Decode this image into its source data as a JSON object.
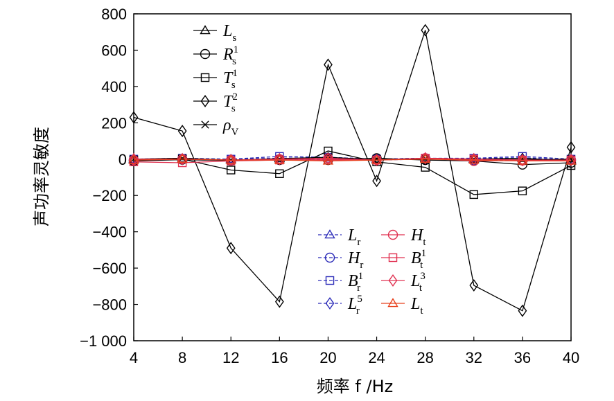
{
  "chart_data": {
    "type": "line",
    "xlabel": "频率 f /Hz",
    "ylabel": "声功率灵敏度",
    "x": [
      4,
      8,
      12,
      16,
      20,
      24,
      28,
      32,
      36,
      40
    ],
    "xlim": [
      4,
      40
    ],
    "ylim": [
      -1000,
      800
    ],
    "x_ticks": [
      "4",
      "8",
      "12",
      "16",
      "20",
      "24",
      "28",
      "32",
      "36",
      "40"
    ],
    "y_ticks": [
      "−1 000",
      "−800",
      "−600",
      "−400",
      "−200",
      "0",
      "200",
      "400",
      "600",
      "800"
    ],
    "y_tick_values": [
      -1000,
      -800,
      -600,
      -400,
      -200,
      0,
      200,
      400,
      600,
      800
    ],
    "grid": false,
    "legend_groups": [
      {
        "placement": "top-left",
        "items": [
          0,
          1,
          2,
          3,
          4
        ]
      },
      {
        "placement": "bottom-center",
        "columns": 2,
        "items": [
          5,
          6,
          7,
          8,
          9,
          10,
          11,
          12
        ]
      }
    ],
    "series": [
      {
        "name": "Ls",
        "base": "L",
        "sub": "s",
        "sup": "",
        "color": "#000000",
        "marker": "triangle",
        "dash": false,
        "values": [
          -5,
          2,
          -5,
          3,
          10,
          -3,
          5,
          0,
          5,
          -10
        ]
      },
      {
        "name": "Rs1",
        "base": "R",
        "sub": "s",
        "sup": "1",
        "color": "#000000",
        "marker": "circle",
        "dash": false,
        "values": [
          -10,
          -3,
          -8,
          -5,
          -5,
          5,
          -5,
          -10,
          -30,
          -20
        ]
      },
      {
        "name": "Ts1",
        "base": "T",
        "sub": "s",
        "sup": "1",
        "color": "#000000",
        "marker": "square",
        "dash": false,
        "values": [
          -5,
          0,
          -60,
          -80,
          45,
          -15,
          -45,
          -195,
          -175,
          -35
        ]
      },
      {
        "name": "Ts2",
        "base": "T",
        "sub": "s",
        "sup": "2",
        "color": "#000000",
        "marker": "diamond",
        "dash": false,
        "values": [
          230,
          155,
          -490,
          -785,
          520,
          -120,
          710,
          -695,
          -835,
          65
        ]
      },
      {
        "name": "ρV",
        "base": "ρ",
        "sub": "V",
        "sup": "",
        "color": "#000000",
        "marker": "x",
        "dash": false,
        "values": [
          0,
          5,
          -5,
          0,
          2,
          -2,
          3,
          0,
          -3,
          0
        ]
      },
      {
        "name": "Lr",
        "base": "L",
        "sub": "r",
        "sup": "",
        "color": "#2b2bb8",
        "marker": "triangle",
        "dash": true,
        "values": [
          0,
          2,
          0,
          5,
          10,
          0,
          5,
          2,
          8,
          -5
        ]
      },
      {
        "name": "Ht",
        "base": "H",
        "sub": "t",
        "sup": "",
        "color": "#e03050",
        "marker": "circle",
        "dash": false,
        "values": [
          -5,
          0,
          -5,
          0,
          5,
          -5,
          5,
          -10,
          -8,
          -5
        ]
      },
      {
        "name": "Hr",
        "base": "H",
        "sub": "r",
        "sup": "",
        "color": "#2b2bb8",
        "marker": "circle",
        "dash": true,
        "values": [
          -5,
          0,
          -5,
          0,
          5,
          0,
          5,
          -5,
          -5,
          -5
        ]
      },
      {
        "name": "Bt1",
        "base": "B",
        "sub": "t",
        "sup": "1",
        "color": "#e03050",
        "marker": "square",
        "dash": false,
        "values": [
          -15,
          -20,
          -10,
          -5,
          -5,
          -5,
          5,
          0,
          -5,
          -5
        ]
      },
      {
        "name": "Br1",
        "base": "B",
        "sub": "r",
        "sup": "1",
        "color": "#2b2bb8",
        "marker": "square",
        "dash": true,
        "values": [
          0,
          5,
          0,
          15,
          10,
          0,
          5,
          5,
          15,
          0
        ]
      },
      {
        "name": "Lt3",
        "base": "L",
        "sub": "t",
        "sup": "3",
        "color": "#e03050",
        "marker": "diamond",
        "dash": false,
        "values": [
          0,
          0,
          -5,
          0,
          0,
          -5,
          5,
          0,
          -5,
          -5
        ]
      },
      {
        "name": "Lr5",
        "base": "L",
        "sub": "r",
        "sup": "5",
        "color": "#2b2bb8",
        "marker": "diamond",
        "dash": true,
        "values": [
          -5,
          0,
          -5,
          0,
          0,
          -5,
          0,
          0,
          -5,
          -5
        ]
      },
      {
        "name": "Lt",
        "base": "L",
        "sub": "t",
        "sup": "",
        "color": "#e8401c",
        "marker": "triangle",
        "dash": false,
        "values": [
          -5,
          0,
          -5,
          -5,
          -10,
          -5,
          0,
          -5,
          -10,
          -10
        ]
      }
    ]
  }
}
